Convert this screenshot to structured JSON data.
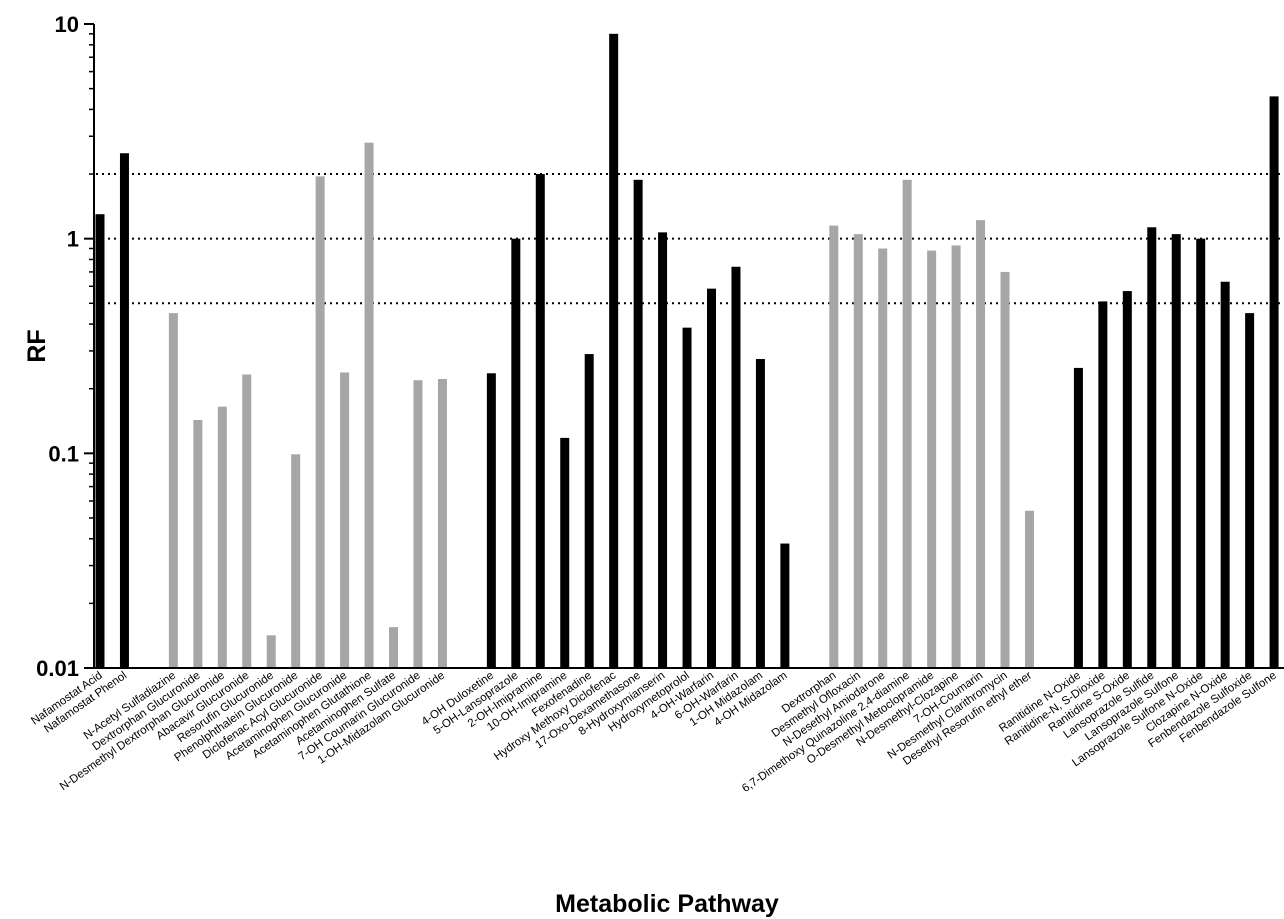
{
  "chart_data": {
    "type": "bar",
    "title": "",
    "xlabel": "Metabolic Pathway",
    "ylabel": "RF",
    "yscale": "log",
    "ylim": [
      0.01,
      10
    ],
    "yticks": [
      "0.01",
      "0.1",
      "1",
      "10"
    ],
    "reference_lines": [
      0.5,
      1,
      2
    ],
    "colors": {
      "black": "#000000",
      "gray": "#a6a6a6"
    },
    "categories": [
      "Nafamostat Acid",
      "Nafamostat Phenol",
      "",
      "N-Acetyl Sulfadiazine",
      "Dextrorphan Glucuronide",
      "N-Desmethyl Dextrorphan Glucuronide",
      "Abacavir Glucuronide",
      "Resorufin Glucuronide",
      "Phenolphthalein Glucuronide",
      "Diclofenac Acyl Glucuronide",
      "Acetaminophen Glucuronide",
      "Acetaminophen Glutathione",
      "Acetaminophen Sulfate",
      "7-OH Coumarin Glucuronide",
      "1-OH-Midazolam Glucuronide",
      "",
      "4-OH Duloxetine",
      "5-OH-Lansoprazole",
      "2-OH-Imipramine",
      "10-OH-Imipramine",
      "Fexofenadine",
      "Hydroxy Methoxy Diclofenac",
      "17-Oxo-Dexamethasone",
      "8-Hydroxymianserin",
      "Hydroxymetoprolol",
      "4-OH-Warfarin",
      "6-OH-Warfarin",
      "1-OH Midazolam",
      "4-OH Midazolam",
      "",
      "Dextrorphan",
      "Desmethyl Ofloxacin",
      "N-Desethyl Amiodarone",
      "6,7-Dimethoxy Quinazoline 2,4-diamine",
      "O-Desmethyl Metoclopramide",
      "N-Desmethyl-Clozapine",
      "7-OH-Coumarin",
      "N-Desmethyl Clarithromycin",
      "Desethyl Resorufin ethyl ether",
      "",
      "Ranitidine N-Oxide",
      "Ranitidine-N, S-Dioxide",
      "Ranitidine S-Oxide",
      "Lansoprazole Sulfide",
      "Lansoprazole Sulfone",
      "Lansoprazole Sulfone N-Oxide",
      "Clozapine N-Oxide",
      "Fenbendazole Sulfoxide",
      "Fenbendazole Sulfone"
    ],
    "values": [
      1.3,
      2.5,
      null,
      0.45,
      0.143,
      0.165,
      0.233,
      0.0142,
      0.099,
      1.95,
      0.238,
      2.8,
      0.0155,
      0.219,
      0.222,
      null,
      0.236,
      1.0,
      2.0,
      0.118,
      0.29,
      9.0,
      1.88,
      1.07,
      0.385,
      0.585,
      0.74,
      0.275,
      0.038,
      null,
      1.15,
      1.05,
      0.9,
      1.88,
      0.88,
      0.93,
      1.22,
      0.7,
      0.054,
      null,
      0.25,
      0.51,
      0.57,
      1.13,
      1.05,
      1.0,
      0.63,
      0.45,
      4.6
    ],
    "bar_colors": [
      "black",
      "black",
      null,
      "gray",
      "gray",
      "gray",
      "gray",
      "gray",
      "gray",
      "gray",
      "gray",
      "gray",
      "gray",
      "gray",
      "gray",
      null,
      "black",
      "black",
      "black",
      "black",
      "black",
      "black",
      "black",
      "black",
      "black",
      "black",
      "black",
      "black",
      "black",
      null,
      "gray",
      "gray",
      "gray",
      "gray",
      "gray",
      "gray",
      "gray",
      "gray",
      "gray",
      null,
      "black",
      "black",
      "black",
      "black",
      "black",
      "black",
      "black",
      "black",
      "black"
    ]
  }
}
